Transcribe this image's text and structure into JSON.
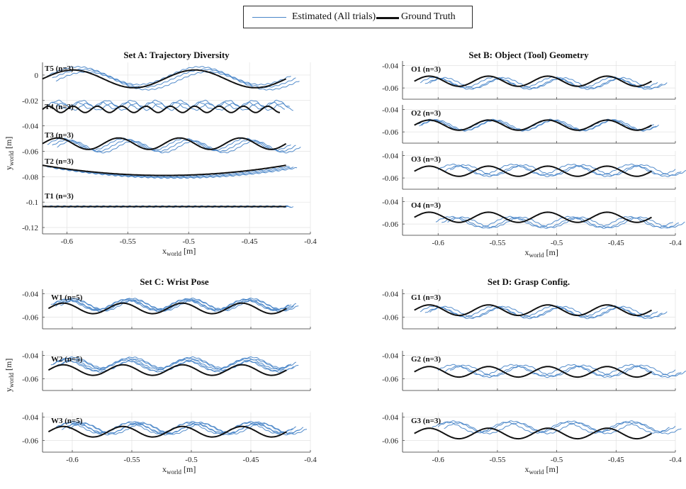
{
  "legend": {
    "estimated_label": "Estimated (All trials)",
    "ground_truth_label": "Ground Truth",
    "estimated_color": "#4a86c8",
    "ground_truth_color": "#111111"
  },
  "colors": {
    "estimated": "#4a86c8",
    "ground_truth": "#111111",
    "grid": "#e2e2e2",
    "axis": "#333333"
  },
  "chart_data": [
    {
      "type": "line",
      "title": "Set A: Trajectory Diversity",
      "xlabel": "x_world [m]",
      "ylabel": "y_world [m]",
      "xlim": [
        -0.62,
        -0.4
      ],
      "ylim": [
        -0.125,
        0.01
      ],
      "xticks": [
        -0.6,
        -0.55,
        -0.5,
        -0.45,
        -0.4
      ],
      "xtick_labels": [
        "-0.6",
        "-0.55",
        "-0.5",
        "-0.45",
        "-0.4"
      ],
      "yticks": [
        0,
        -0.02,
        -0.04,
        -0.06,
        -0.08,
        -0.1,
        -0.12
      ],
      "ytick_labels": [
        "0",
        "-0.02",
        "-0.04",
        "-0.06",
        "-0.08",
        "-0.1",
        "-0.12"
      ],
      "grid": true,
      "groups": [
        {
          "label": "T5 (n=3)",
          "ground_truth": {
            "shape": "sine",
            "center": -0.003,
            "amplitude": 0.007,
            "period": 0.1,
            "phase_x": -0.62,
            "x_start": -0.62,
            "x_end": -0.42
          },
          "estimated": [
            {
              "x_shift": 0.004,
              "y_offset": 0.0025
            },
            {
              "x_shift": 0.008,
              "y_offset": 0.0005
            },
            {
              "x_shift": 0.011,
              "y_offset": -0.0015
            }
          ]
        },
        {
          "label": "T4 (n=3)",
          "ground_truth": {
            "shape": "sine",
            "center": -0.027,
            "amplitude": 0.0025,
            "period": 0.02,
            "phase_x": -0.62,
            "x_start": -0.62,
            "x_end": -0.425
          },
          "estimated": [
            {
              "x_shift": 0.004,
              "y_offset": 0.003
            },
            {
              "x_shift": 0.008,
              "y_offset": 0.0045
            },
            {
              "x_shift": 0.011,
              "y_offset": 0.002
            }
          ]
        },
        {
          "label": "T3 (n=3)",
          "ground_truth": {
            "shape": "sine",
            "center": -0.054,
            "amplitude": 0.0045,
            "period": 0.05,
            "phase_x": -0.62,
            "x_start": -0.62,
            "x_end": -0.42
          },
          "estimated": [
            {
              "x_shift": 0.004,
              "y_offset": -0.0005
            },
            {
              "x_shift": 0.008,
              "y_offset": -0.0015
            },
            {
              "x_shift": 0.012,
              "y_offset": -0.0025
            }
          ]
        },
        {
          "label": "T2 (n=3)",
          "ground_truth": {
            "shape": "arc",
            "y_start": -0.071,
            "y_min": -0.079,
            "y_end": -0.071,
            "x_start": -0.62,
            "x_end": -0.42
          },
          "estimated": [
            {
              "x_shift": 0.003,
              "y_offset": -0.0008
            },
            {
              "x_shift": 0.006,
              "y_offset": -0.0015
            },
            {
              "x_shift": 0.009,
              "y_offset": -0.002
            }
          ]
        },
        {
          "label": "T1 (n=3)",
          "ground_truth": {
            "shape": "flat",
            "center": -0.1035,
            "x_start": -0.62,
            "x_end": -0.42
          },
          "estimated": [
            {
              "x_shift": 0.002,
              "y_offset": 0.0003
            },
            {
              "x_shift": 0.004,
              "y_offset": 0.0
            },
            {
              "x_shift": 0.006,
              "y_offset": -0.0003
            }
          ]
        }
      ]
    },
    {
      "type": "line",
      "title": "Set B: Object (Tool) Geometry",
      "xlabel": "x_world [m]",
      "xlim": [
        -0.63,
        -0.4
      ],
      "ylim": [
        -0.07,
        -0.036
      ],
      "xticks": [
        -0.6,
        -0.55,
        -0.5,
        -0.45,
        -0.4
      ],
      "xtick_labels": [
        "-0.6",
        "-0.55",
        "-0.5",
        "-0.45",
        "-0.4"
      ],
      "yticks": [
        -0.04,
        -0.06
      ],
      "ytick_labels": [
        "-0.04",
        "-0.06"
      ],
      "grid": true,
      "panels": [
        {
          "label": "O1 (n=3)",
          "ground_truth": {
            "shape": "sine",
            "center": -0.054,
            "amplitude": 0.0045,
            "period": 0.05,
            "phase_x": -0.62,
            "x_start": -0.62,
            "x_end": -0.42
          },
          "estimated": [
            {
              "x_shift": 0.005,
              "y_offset": -0.001
            },
            {
              "x_shift": 0.009,
              "y_offset": -0.0025
            },
            {
              "x_shift": 0.013,
              "y_offset": -0.0015
            }
          ]
        },
        {
          "label": "O2 (n=3)",
          "ground_truth": {
            "shape": "sine",
            "center": -0.054,
            "amplitude": 0.0045,
            "period": 0.05,
            "phase_x": -0.62,
            "x_start": -0.62,
            "x_end": -0.42
          },
          "estimated": [
            {
              "x_shift": 0.002,
              "y_offset": 0.0005
            },
            {
              "x_shift": 0.004,
              "y_offset": -0.0005
            },
            {
              "x_shift": 0.006,
              "y_offset": 0.0
            }
          ]
        },
        {
          "label": "O3 (n=3)",
          "ground_truth": {
            "shape": "sine",
            "center": -0.054,
            "amplitude": 0.0045,
            "period": 0.05,
            "phase_x": -0.62,
            "x_start": -0.62,
            "x_end": -0.42
          },
          "estimated": [
            {
              "x_shift": 0.02,
              "y_offset": 0.0015
            },
            {
              "x_shift": 0.025,
              "y_offset": 0.0
            },
            {
              "x_shift": 0.03,
              "y_offset": 0.001
            }
          ]
        },
        {
          "label": "O4 (n=3)",
          "ground_truth": {
            "shape": "sine",
            "center": -0.054,
            "amplitude": 0.0045,
            "period": 0.05,
            "phase_x": -0.62,
            "x_start": -0.62,
            "x_end": -0.42
          },
          "estimated": [
            {
              "x_shift": 0.018,
              "y_offset": -0.004
            },
            {
              "x_shift": 0.023,
              "y_offset": -0.005
            },
            {
              "x_shift": 0.028,
              "y_offset": -0.0045
            }
          ]
        }
      ]
    },
    {
      "type": "line",
      "title": "Set C: Wrist Pose",
      "xlabel": "x_world [m]",
      "ylabel": "y_world [m]",
      "xlim": [
        -0.625,
        -0.4
      ],
      "ylim": [
        -0.07,
        -0.036
      ],
      "xticks": [
        -0.6,
        -0.55,
        -0.5,
        -0.45,
        -0.4
      ],
      "xtick_labels": [
        "-0.6",
        "-0.55",
        "-0.5",
        "-0.45",
        "-0.4"
      ],
      "yticks": [
        -0.04,
        -0.06
      ],
      "ytick_labels": [
        "-0.04",
        "-0.06"
      ],
      "grid": true,
      "panels": [
        {
          "label": "W1 (n=5)",
          "ground_truth": {
            "shape": "sine",
            "center": -0.0525,
            "amplitude": 0.0045,
            "period": 0.05,
            "phase_x": -0.62,
            "x_start": -0.62,
            "x_end": -0.42
          },
          "estimated": [
            {
              "x_shift": 0.002,
              "y_offset": 0.003
            },
            {
              "x_shift": 0.004,
              "y_offset": 0.0035
            },
            {
              "x_shift": 0.006,
              "y_offset": 0.002
            },
            {
              "x_shift": 0.008,
              "y_offset": 0.004
            },
            {
              "x_shift": 0.01,
              "y_offset": 0.0025
            }
          ]
        },
        {
          "label": "W2 (n=5)",
          "ground_truth": {
            "shape": "sine",
            "center": -0.0525,
            "amplitude": 0.0045,
            "period": 0.05,
            "phase_x": -0.62,
            "x_start": -0.62,
            "x_end": -0.42
          },
          "estimated": [
            {
              "x_shift": 0.002,
              "y_offset": 0.004
            },
            {
              "x_shift": 0.004,
              "y_offset": 0.0055
            },
            {
              "x_shift": 0.006,
              "y_offset": 0.003
            },
            {
              "x_shift": 0.008,
              "y_offset": 0.0065
            },
            {
              "x_shift": 0.01,
              "y_offset": 0.0045
            }
          ]
        },
        {
          "label": "W3 (n=5)",
          "ground_truth": {
            "shape": "sine",
            "center": -0.0525,
            "amplitude": 0.0045,
            "period": 0.05,
            "phase_x": -0.62,
            "x_start": -0.62,
            "x_end": -0.42
          },
          "estimated": [
            {
              "x_shift": 0.005,
              "y_offset": 0.003
            },
            {
              "x_shift": 0.008,
              "y_offset": 0.004
            },
            {
              "x_shift": 0.011,
              "y_offset": 0.002
            },
            {
              "x_shift": 0.014,
              "y_offset": 0.0035
            },
            {
              "x_shift": 0.017,
              "y_offset": 0.0025
            }
          ]
        }
      ]
    },
    {
      "type": "line",
      "title": "Set D: Grasp Config.",
      "xlabel": "x_world [m]",
      "xlim": [
        -0.63,
        -0.4
      ],
      "ylim": [
        -0.07,
        -0.036
      ],
      "xticks": [
        -0.6,
        -0.55,
        -0.5,
        -0.45,
        -0.4
      ],
      "xtick_labels": [
        "-0.6",
        "-0.55",
        "-0.5",
        "-0.45",
        "-0.4"
      ],
      "yticks": [
        -0.04,
        -0.06
      ],
      "ytick_labels": [
        "-0.04",
        "-0.06"
      ],
      "grid": true,
      "panels": [
        {
          "label": "G1 (n=3)",
          "ground_truth": {
            "shape": "sine",
            "center": -0.054,
            "amplitude": 0.0045,
            "period": 0.05,
            "phase_x": -0.62,
            "x_start": -0.62,
            "x_end": -0.42
          },
          "estimated": [
            {
              "x_shift": 0.005,
              "y_offset": -0.001
            },
            {
              "x_shift": 0.009,
              "y_offset": -0.0025
            },
            {
              "x_shift": 0.013,
              "y_offset": -0.0015
            }
          ]
        },
        {
          "label": "G2 (n=3)",
          "ground_truth": {
            "shape": "sine",
            "center": -0.054,
            "amplitude": 0.0045,
            "period": 0.05,
            "phase_x": -0.62,
            "x_start": -0.62,
            "x_end": -0.42
          },
          "estimated": [
            {
              "x_shift": 0.02,
              "y_offset": 0.0015
            },
            {
              "x_shift": 0.025,
              "y_offset": 0.0
            },
            {
              "x_shift": 0.03,
              "y_offset": 0.001
            }
          ]
        },
        {
          "label": "G3 (n=3)",
          "ground_truth": {
            "shape": "sine",
            "center": -0.054,
            "amplitude": 0.0045,
            "period": 0.05,
            "phase_x": -0.62,
            "x_start": -0.62,
            "x_end": -0.42
          },
          "estimated": [
            {
              "x_shift": 0.015,
              "y_offset": 0.005
            },
            {
              "x_shift": 0.02,
              "y_offset": 0.006
            },
            {
              "x_shift": 0.025,
              "y_offset": 0.0045
            }
          ]
        }
      ]
    }
  ]
}
